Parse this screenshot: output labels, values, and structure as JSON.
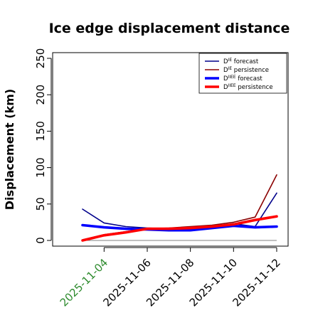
{
  "chart_data": {
    "type": "line",
    "title": "Ice edge displacement distance",
    "xlabel": "",
    "ylabel": "Displacement (km)",
    "ylim": [
      0,
      250
    ],
    "yticks": [
      0,
      50,
      100,
      150,
      200,
      250
    ],
    "x": [
      "2025-11-03",
      "2025-11-04",
      "2025-11-05",
      "2025-11-06",
      "2025-11-07",
      "2025-11-08",
      "2025-11-09",
      "2025-11-10",
      "2025-11-11",
      "2025-11-12"
    ],
    "xticks": [
      "2025-11-04",
      "2025-11-06",
      "2025-11-08",
      "2025-11-10",
      "2025-11-12"
    ],
    "xtick_colors": [
      "#2e8b2e",
      "#000000",
      "#000000",
      "#000000",
      "#000000"
    ],
    "legend_position": "top-right",
    "grid": false,
    "series": [
      {
        "name": "D^IE forecast",
        "name_base": "D",
        "name_sup": "IE",
        "name_rest": " forecast",
        "color": "#00008b",
        "width": 1.6,
        "values": [
          43,
          24,
          19,
          17,
          16,
          16,
          18,
          23,
          19,
          65
        ]
      },
      {
        "name": "D^IE persistence",
        "name_base": "D",
        "name_sup": "IE",
        "name_rest": " persistence",
        "color": "#8b0000",
        "width": 1.6,
        "values": [
          1,
          8,
          12,
          16,
          17,
          19,
          21,
          25,
          32,
          90
        ]
      },
      {
        "name": "D^IIEE forecast",
        "name_base": "D",
        "name_sup": "IIEE",
        "name_rest": " forecast",
        "color": "#0000ff",
        "width": 3.6,
        "values": [
          21,
          18,
          16,
          15,
          14,
          14,
          17,
          20,
          18,
          19
        ]
      },
      {
        "name": "D^IIEE persistence",
        "name_base": "D",
        "name_sup": "IIEE",
        "name_rest": " persistence",
        "color": "#ff0000",
        "width": 3.6,
        "values": [
          0,
          7,
          11,
          16,
          16,
          17,
          19,
          22,
          28,
          33
        ]
      }
    ]
  }
}
